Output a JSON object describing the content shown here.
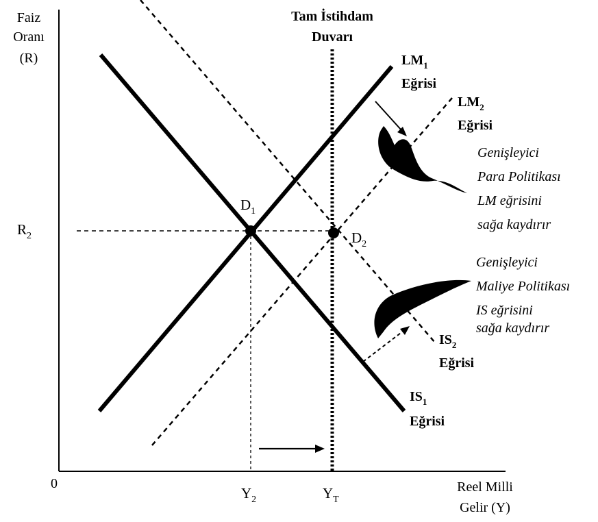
{
  "axes": {
    "y_label_lines": [
      "Faiz",
      "Oranı",
      "(R)"
    ],
    "x_label_lines": [
      "Reel Milli",
      "Gelir (Y)"
    ],
    "origin": "0"
  },
  "ticks": {
    "r2": {
      "base": "R",
      "sub": "2"
    },
    "y2": {
      "base": "Y",
      "sub": "2"
    },
    "yt": {
      "base": "Y",
      "sub": "T"
    }
  },
  "wall": {
    "title_lines": [
      "Tam İstihdam",
      "Duvarı"
    ]
  },
  "curves": {
    "lm1": {
      "base": "LM",
      "sub": "1",
      "word": "Eğrisi"
    },
    "lm2": {
      "base": "LM",
      "sub": "2",
      "word": "Eğrisi"
    },
    "is1": {
      "base": "IS",
      "sub": "1",
      "word": "Eğrisi"
    },
    "is2": {
      "base": "IS",
      "sub": "2",
      "word": "Eğrisi"
    }
  },
  "points": {
    "d1": {
      "base": "D",
      "sub": "1"
    },
    "d2": {
      "base": "D",
      "sub": "2"
    }
  },
  "notes": {
    "monetary": [
      "Genişleyici",
      "Para Politikası",
      "LM  eğrisini",
      "sağa kaydırır"
    ],
    "fiscal": [
      "Genişleyici",
      "Maliye Politikası",
      "IS  eğrisini",
      "sağa kaydırır"
    ]
  }
}
